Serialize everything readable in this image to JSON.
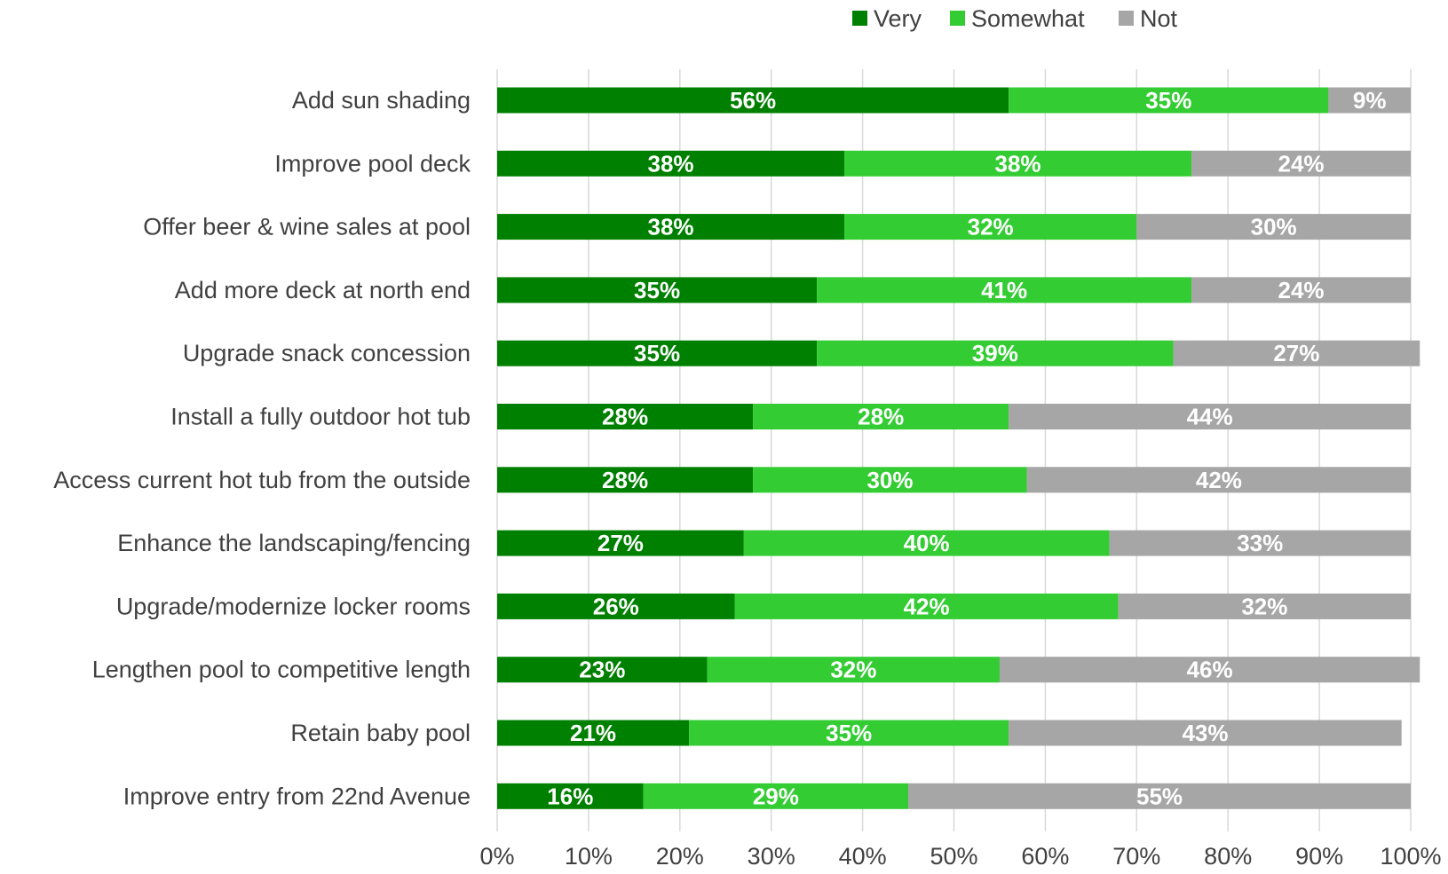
{
  "chart_data": {
    "type": "bar",
    "orientation": "horizontal",
    "stacked": true,
    "title": "",
    "xlabel": "",
    "ylabel": "",
    "xlim": [
      0,
      100
    ],
    "x_ticks": [
      "0%",
      "10%",
      "20%",
      "30%",
      "40%",
      "50%",
      "60%",
      "70%",
      "80%",
      "90%",
      "100%"
    ],
    "grid": true,
    "legend_position": "top-right",
    "categories": [
      "Add sun shading",
      "Improve pool deck",
      "Offer beer & wine sales at pool",
      "Add more deck at north end",
      "Upgrade snack concession",
      "Install a fully outdoor hot tub",
      "Access current hot tub from the outside",
      "Enhance the landscaping/fencing",
      "Upgrade/modernize locker rooms",
      "Lengthen pool to competitive length",
      "Retain baby pool",
      "Improve entry from 22nd Avenue"
    ],
    "series": [
      {
        "name": "Very",
        "color": "#008000",
        "values": [
          56,
          38,
          38,
          35,
          35,
          28,
          28,
          27,
          26,
          23,
          21,
          16
        ]
      },
      {
        "name": "Somewhat",
        "color": "#33cc33",
        "values": [
          35,
          38,
          32,
          41,
          39,
          28,
          30,
          40,
          42,
          32,
          35,
          29
        ]
      },
      {
        "name": "Not",
        "color": "#a6a6a6",
        "values": [
          9,
          24,
          30,
          24,
          27,
          44,
          42,
          33,
          32,
          46,
          43,
          55
        ]
      }
    ],
    "value_suffix": "%"
  }
}
